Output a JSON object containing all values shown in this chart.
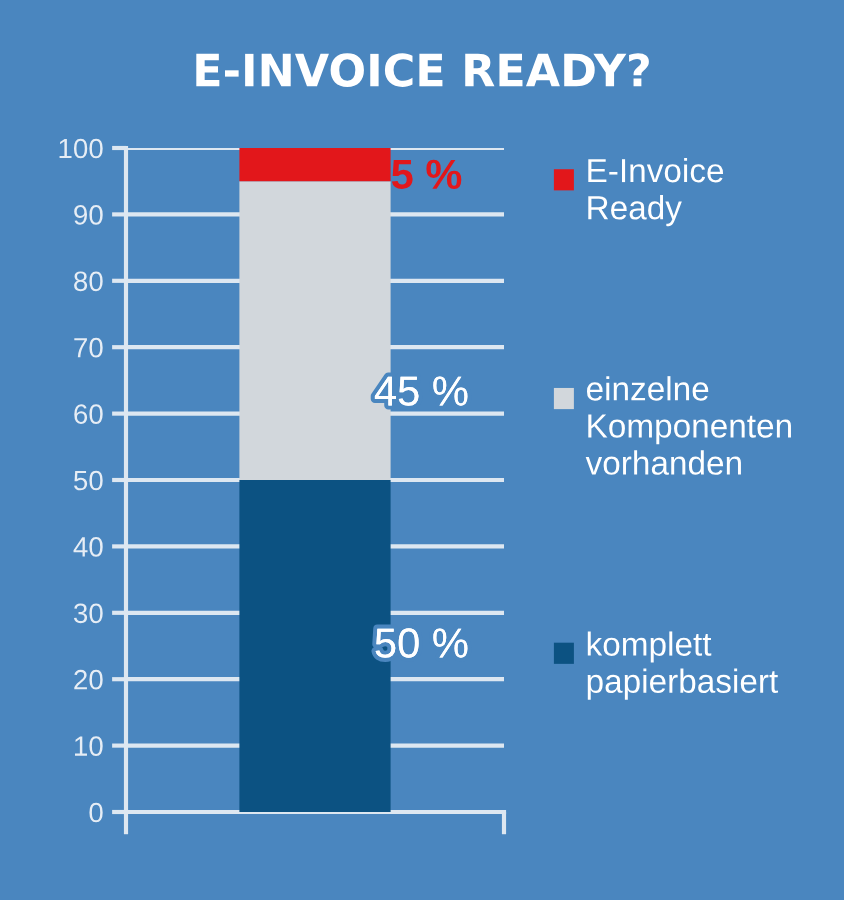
{
  "chart_data": {
    "type": "bar",
    "title": "E-INVOICE READY?",
    "categories": [
      null
    ],
    "stacked": true,
    "series": [
      {
        "name": "komplett\npapierbasiert",
        "color": "#0c5282",
        "values": [
          50
        ],
        "value_labels": [
          "50 %"
        ]
      },
      {
        "name": "einzelne\nKomponenten\nvorhanden",
        "color": "#d2d7dc",
        "values": [
          45
        ],
        "value_labels": [
          "45 %"
        ]
      },
      {
        "name": "E-Invoice\nReady",
        "color": "#e2171b",
        "values": [
          5
        ],
        "value_labels": [
          "5 %"
        ]
      }
    ],
    "ylim": [
      0,
      100
    ],
    "yticks": [
      0,
      10,
      20,
      30,
      40,
      50,
      60,
      70,
      80,
      90,
      100
    ],
    "grid": "y",
    "legend": "right",
    "tick_labels": "y"
  }
}
